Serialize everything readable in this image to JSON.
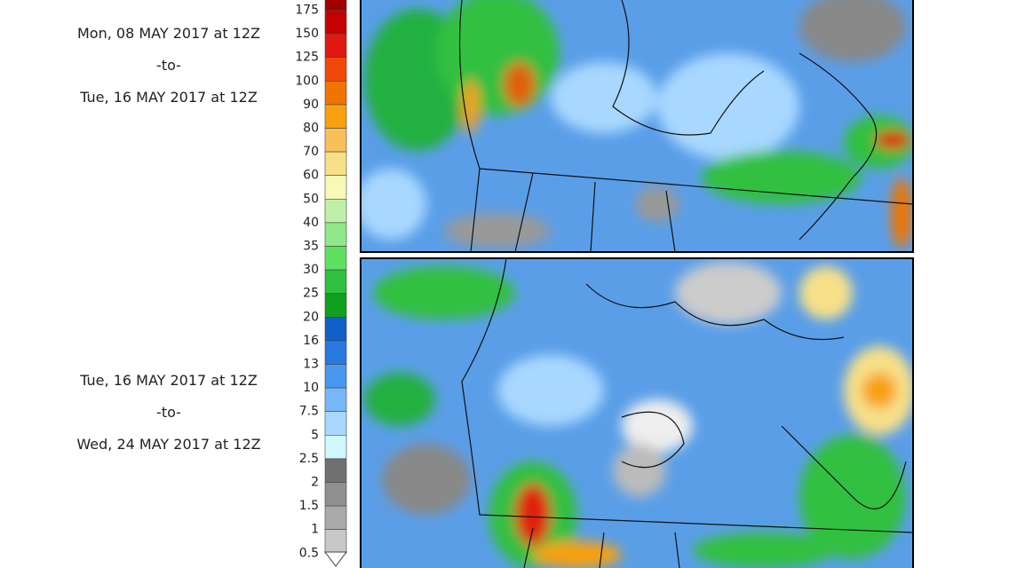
{
  "periods": [
    {
      "start": "Mon, 08 MAY 2017 at 12Z",
      "separator": "-to-",
      "end": "Tue, 16 MAY 2017 at 12Z"
    },
    {
      "start": "Tue, 16 MAY 2017 at 12Z",
      "separator": "-to-",
      "end": "Wed, 24 MAY 2017 at 12Z"
    }
  ],
  "legend": {
    "items": [
      {
        "label": "175",
        "color": "#a00000"
      },
      {
        "label": "150",
        "color": "#c40000"
      },
      {
        "label": "125",
        "color": "#e01810"
      },
      {
        "label": "100",
        "color": "#f04808"
      },
      {
        "label": "90",
        "color": "#f07400"
      },
      {
        "label": "80",
        "color": "#f8a010"
      },
      {
        "label": "70",
        "color": "#f8c058"
      },
      {
        "label": "60",
        "color": "#f8e088"
      },
      {
        "label": "50",
        "color": "#f8f8b8"
      },
      {
        "label": "40",
        "color": "#c0f0a8"
      },
      {
        "label": "35",
        "color": "#90e888"
      },
      {
        "label": "30",
        "color": "#60e060"
      },
      {
        "label": "25",
        "color": "#30c040"
      },
      {
        "label": "20",
        "color": "#10a020"
      },
      {
        "label": "16",
        "color": "#1060c8"
      },
      {
        "label": "13",
        "color": "#2878e0"
      },
      {
        "label": "10",
        "color": "#4898f0"
      },
      {
        "label": "7.5",
        "color": "#78b8f8"
      },
      {
        "label": "5",
        "color": "#a8d8ff"
      },
      {
        "label": "2.5",
        "color": "#d0f8ff"
      },
      {
        "label": "2",
        "color": "#707070"
      },
      {
        "label": "1.5",
        "color": "#909090"
      },
      {
        "label": "1",
        "color": "#aaaaaa"
      },
      {
        "label": "0.5",
        "color": "#c8c8c8"
      }
    ]
  }
}
